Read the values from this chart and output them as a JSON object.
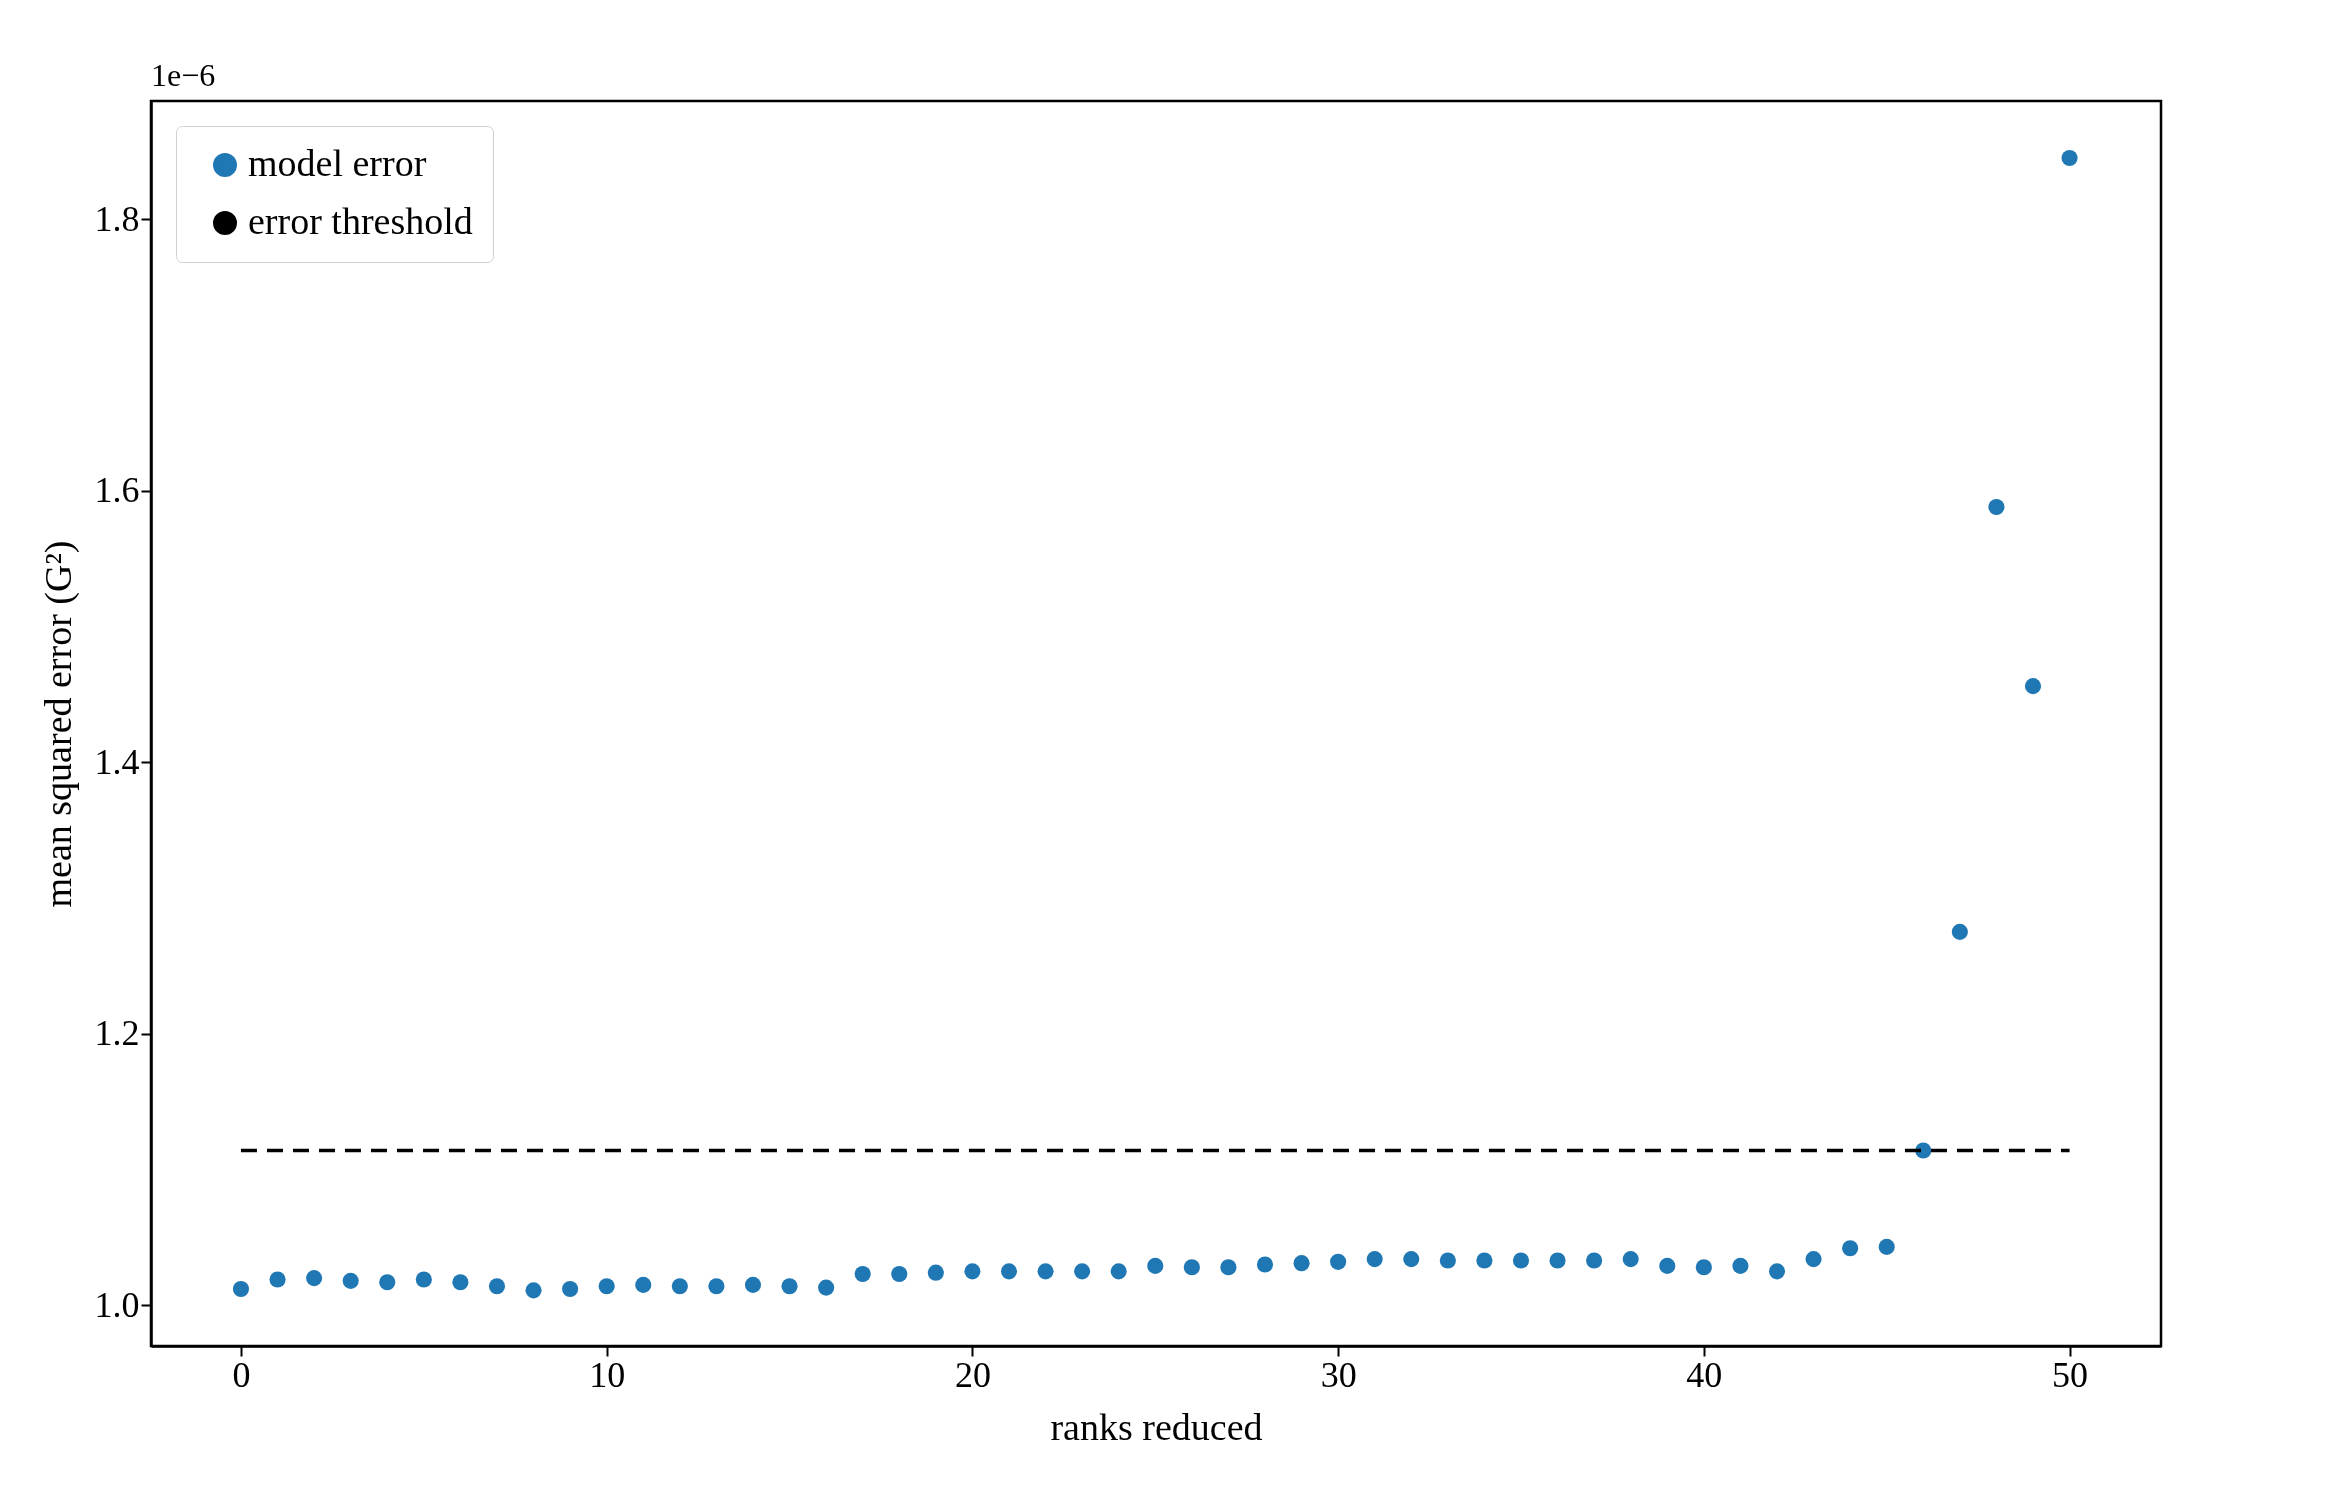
{
  "chart_data": {
    "type": "scatter",
    "xlabel": "ranks reduced",
    "ylabel": "mean squared error (G²)",
    "annotations": [
      "1e−6"
    ],
    "x": [
      0,
      1,
      2,
      3,
      4,
      5,
      6,
      7,
      8,
      9,
      10,
      11,
      12,
      13,
      14,
      15,
      16,
      17,
      18,
      19,
      20,
      21,
      22,
      23,
      24,
      25,
      26,
      27,
      28,
      29,
      30,
      31,
      32,
      33,
      34,
      35,
      36,
      37,
      38,
      39,
      40,
      41,
      42,
      43,
      44,
      45,
      46,
      47,
      48,
      49,
      50
    ],
    "series": [
      {
        "name": "model error",
        "color": "#1f77b4",
        "marker": "circle",
        "values": [
          1.012,
          1.019,
          1.02,
          1.018,
          1.017,
          1.019,
          1.017,
          1.014,
          1.011,
          1.012,
          1.014,
          1.015,
          1.014,
          1.014,
          1.015,
          1.014,
          1.013,
          1.023,
          1.023,
          1.024,
          1.025,
          1.025,
          1.025,
          1.025,
          1.025,
          1.029,
          1.028,
          1.028,
          1.03,
          1.031,
          1.032,
          1.034,
          1.034,
          1.033,
          1.033,
          1.033,
          1.033,
          1.033,
          1.034,
          1.029,
          1.028,
          1.029,
          1.025,
          1.034,
          1.042,
          1.043,
          1.114,
          1.275,
          1.588,
          1.456,
          1.845
        ]
      },
      {
        "name": "error threshold",
        "type": "line",
        "color": "#000000",
        "line_style": "dashed",
        "marker": "none",
        "x": [
          0,
          50
        ],
        "values": [
          1.114,
          1.114
        ]
      }
    ],
    "xlim": [
      -2.46,
      52.5
    ],
    "ylim": [
      0.97,
      1.887
    ],
    "xticks": [
      0,
      10,
      20,
      30,
      40,
      50
    ],
    "yticks": [
      {
        "value": 1,
        "label": "1.0"
      },
      1.2,
      1.4,
      1.6,
      1.8
    ],
    "grid": false,
    "legend": "top left"
  }
}
